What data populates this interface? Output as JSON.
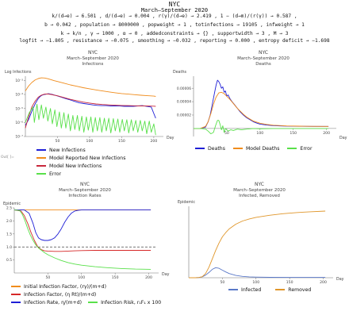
{
  "header": {
    "title": "NYC",
    "subtitle": "March–September 2020",
    "params": [
      "k/(d→e) → 6.501 ,  d/(d→e) → 0.004 ,  r(γ)/(d→e) → 2.419 ,  1 − (d→m)/(r(γ)) → 0.587 ,",
      "b → 0.042 ,  population → 8000000 ,  popweight → 1 ,  totinfections → 19105 ,  infweight → 1",
      "k → k/n ,  γ → 1000 ,  α → 0 ,  addedconstraints → {} ,  supportwidth → 3 ,  M → 3",
      "logfit → −1.805 ,  resistance → −0.075 ,  smoothing → −0.032 ,  reporting → 0.000 ,  entropy deficit → −1.698"
    ]
  },
  "out_label": "Out[ ]=",
  "chart_data": [
    {
      "type": "line",
      "title": "NYC",
      "subtitle": "March–September 2020",
      "subtitle2": "Infections",
      "ylabel": "Log Infections",
      "xlabel": "Day",
      "xlim": [
        0,
        210
      ],
      "ylim_log10": [
        -7,
        -2.7
      ],
      "xticks": [
        50,
        100,
        150,
        200
      ],
      "yticks": [
        {
          "label": "10⁻³",
          "v": -3
        },
        {
          "label": "10⁻⁴",
          "v": -4
        },
        {
          "label": "10⁻⁵",
          "v": -5
        },
        {
          "label": "10⁻⁶",
          "v": -6
        },
        {
          "label": "10⁻⁷",
          "v": -7
        }
      ],
      "series": [
        {
          "name": "New Infections",
          "color": "#1f1fd6",
          "x": [
            0,
            5,
            10,
            13,
            16,
            20,
            23,
            26,
            30,
            36,
            42,
            49,
            56,
            63,
            70,
            77,
            84,
            91,
            98,
            105,
            112,
            119,
            126,
            133,
            140,
            147,
            154,
            161,
            168,
            175,
            182,
            189,
            196,
            203
          ],
          "y": [
            -6.2,
            -5.8,
            -5.2,
            -4.9,
            -4.6,
            -4.3,
            -4.15,
            -4.05,
            -4.0,
            -3.95,
            -4.0,
            -4.1,
            -4.2,
            -4.3,
            -4.4,
            -4.5,
            -4.6,
            -4.65,
            -4.7,
            -4.75,
            -4.78,
            -4.8,
            -4.8,
            -4.82,
            -4.82,
            -4.83,
            -4.85,
            -4.85,
            -4.85,
            -4.82,
            -4.8,
            -4.85,
            -4.9,
            -5.7
          ]
        },
        {
          "name": "Model Reported New Infections",
          "color": "#f08c1c",
          "x": [
            0,
            5,
            10,
            15,
            20,
            25,
            30,
            35,
            40,
            45,
            50,
            60,
            70,
            80,
            90,
            100,
            110,
            120,
            130,
            140,
            150,
            160,
            170,
            180,
            190,
            200,
            203
          ],
          "y": [
            -3.75,
            -3.4,
            -3.15,
            -2.98,
            -2.87,
            -2.82,
            -2.83,
            -2.88,
            -2.95,
            -3.02,
            -3.08,
            -3.2,
            -3.32,
            -3.42,
            -3.52,
            -3.6,
            -3.68,
            -3.75,
            -3.82,
            -3.88,
            -3.94,
            -3.98,
            -4.02,
            -4.06,
            -4.09,
            -4.12,
            -4.14
          ]
        },
        {
          "name": "Model New Infections",
          "color": "#c8283c",
          "x": [
            0,
            5,
            10,
            15,
            20,
            25,
            30,
            35,
            40,
            45,
            50,
            60,
            70,
            80,
            90,
            100,
            110,
            120,
            130,
            140,
            150,
            160,
            170,
            180,
            190,
            200,
            203
          ],
          "y": [
            -6.4,
            -5.6,
            -4.9,
            -4.5,
            -4.2,
            -4.05,
            -3.98,
            -3.97,
            -4.0,
            -4.05,
            -4.1,
            -4.22,
            -4.35,
            -4.45,
            -4.55,
            -4.62,
            -4.68,
            -4.72,
            -4.75,
            -4.77,
            -4.79,
            -4.8,
            -4.81,
            -4.82,
            -4.83,
            -4.84,
            -4.85
          ]
        },
        {
          "name": "Error",
          "color": "#59e04a",
          "x": [
            0,
            6,
            12,
            14,
            18,
            21,
            25,
            28,
            32,
            35,
            39,
            42,
            46,
            49,
            53,
            56,
            60,
            63,
            67,
            70,
            74,
            77,
            81,
            84,
            88,
            91,
            95,
            98,
            102,
            105,
            109,
            112,
            116,
            119,
            123,
            126,
            130,
            133,
            137,
            140,
            144,
            147,
            151,
            154,
            158,
            161,
            165,
            168,
            172,
            175,
            179,
            182,
            186,
            189,
            193,
            196,
            200,
            203
          ],
          "y": [
            -6.0,
            -5.3,
            -4.9,
            -6.0,
            -4.7,
            -5.8,
            -4.75,
            -5.7,
            -4.9,
            -5.9,
            -5.0,
            -6.1,
            -5.1,
            -6.3,
            -5.25,
            -6.4,
            -5.3,
            -6.4,
            -5.4,
            -6.6,
            -5.5,
            -6.5,
            -5.5,
            -6.6,
            -5.55,
            -6.7,
            -5.6,
            -6.55,
            -5.6,
            -6.7,
            -5.65,
            -6.6,
            -5.65,
            -6.7,
            -5.7,
            -6.6,
            -5.7,
            -6.75,
            -5.72,
            -6.6,
            -5.75,
            -6.7,
            -5.78,
            -6.6,
            -5.8,
            -6.75,
            -5.8,
            -6.6,
            -5.85,
            -6.7,
            -5.85,
            -6.6,
            -5.9,
            -6.8,
            -5.9,
            -6.7,
            -6.1,
            -6.9
          ]
        }
      ]
    },
    {
      "type": "line",
      "title": "NYC",
      "subtitle": "March–September 2020",
      "subtitle2": "Deaths",
      "ylabel": "Deaths",
      "xlabel": "Day",
      "xlim": [
        0,
        210
      ],
      "ylim": [
        -1.2e-05,
        7.8e-05
      ],
      "xticks": [
        50,
        100,
        150,
        200
      ],
      "yticks": [
        {
          "label": "0.00006",
          "v": 6e-05
        },
        {
          "label": "0.00004",
          "v": 4e-05
        },
        {
          "label": "0.00002",
          "v": 2e-05
        }
      ],
      "series": [
        {
          "name": "Deaths",
          "color": "#1f1fd6",
          "x": [
            0,
            10,
            18,
            22,
            25,
            28,
            30,
            32,
            34,
            36,
            38,
            40,
            42,
            44,
            46,
            48,
            50,
            52,
            55,
            58,
            62,
            66,
            70,
            75,
            80,
            85,
            90,
            95,
            100,
            110,
            120,
            130,
            140,
            150,
            160,
            180,
            203
          ],
          "y": [
            0.0,
            0.0,
            2e-06,
            1e-05,
            2e-05,
            3.5e-05,
            4.5e-05,
            5.5e-05,
            6.5e-05,
            7.2e-05,
            7e-05,
            6.6e-05,
            6e-05,
            6.2e-05,
            5.4e-05,
            5.6e-05,
            4.8e-05,
            5e-05,
            4.4e-05,
            4e-05,
            3.5e-05,
            3e-05,
            2.5e-05,
            2e-05,
            1.6e-05,
            1.3e-05,
            1e-05,
            8e-06,
            6.5e-06,
            5e-06,
            4.2e-06,
            3.8e-06,
            3.5e-06,
            3.3e-06,
            3.2e-06,
            3e-06,
            3e-06
          ]
        },
        {
          "name": "Model Deaths",
          "color": "#f08c1c",
          "x": [
            0,
            10,
            18,
            22,
            26,
            30,
            34,
            38,
            42,
            46,
            50,
            55,
            60,
            65,
            70,
            75,
            80,
            90,
            100,
            110,
            120,
            140,
            160,
            180,
            203
          ],
          "y": [
            0.0,
            0.0,
            3e-06,
            1e-05,
            2.2e-05,
            3.6e-05,
            4.7e-05,
            5.3e-05,
            5.4e-05,
            5.2e-05,
            4.8e-05,
            4.3e-05,
            3.7e-05,
            3.1e-05,
            2.6e-05,
            2.1e-05,
            1.7e-05,
            1.1e-05,
            7.8e-06,
            6e-06,
            4.8e-06,
            3.8e-06,
            3.4e-06,
            3.1e-06,
            3e-06
          ]
        },
        {
          "name": "Error",
          "color": "#59e04a",
          "x": [
            0,
            10,
            18,
            22,
            26,
            30,
            33,
            36,
            38,
            40,
            42,
            44,
            46,
            48,
            52,
            56,
            60,
            66,
            72,
            80,
            90,
            100,
            120,
            150,
            180,
            203
          ],
          "y": [
            0.0,
            0.0,
            -1e-06,
            -4e-06,
            -8e-06,
            -6e-06,
            4e-06,
            1.2e-05,
            1.2e-05,
            6e-06,
            -2e-06,
            4e-06,
            -6e-06,
            0.0,
            -4e-06,
            -2e-06,
            -3e-06,
            -1e-06,
            -2e-06,
            -1e-06,
            0.0,
            -5e-07,
            0.0,
            0.0,
            0.0,
            0.0
          ]
        }
      ]
    },
    {
      "type": "line",
      "title": "NYC",
      "subtitle": "March–September 2020",
      "subtitle2": "Infection Rates",
      "ylabel": "Epidemic",
      "xlabel": "Day",
      "xlim": [
        0,
        210
      ],
      "ylim": [
        0,
        2.5
      ],
      "xticks": [
        50,
        100,
        150,
        200
      ],
      "yticks": [
        {
          "label": "2.5",
          "v": 2.5
        },
        {
          "label": "2.0",
          "v": 2.0
        },
        {
          "label": "1.5",
          "v": 1.5
        },
        {
          "label": "1.0",
          "v": 1.0
        },
        {
          "label": "0.5",
          "v": 0.5
        }
      ],
      "reference_line": 1.0,
      "series": [
        {
          "name": "Initial Infection Factor, (rγ)/(m+d)",
          "color": "#f08c1c",
          "x": [
            0,
            203
          ],
          "y": [
            2.42,
            2.42
          ]
        },
        {
          "name": "Infection Factor, (η Rt)/(m+d)",
          "color": "#d62828",
          "x": [
            0,
            10,
            15,
            20,
            25,
            30,
            35,
            40,
            45,
            50,
            60,
            70,
            80,
            90,
            100,
            120,
            140,
            160,
            180,
            203
          ],
          "y": [
            2.42,
            2.38,
            2.2,
            1.9,
            1.55,
            1.25,
            1.0,
            0.9,
            0.85,
            0.84,
            0.83,
            0.83,
            0.84,
            0.85,
            0.86,
            0.87,
            0.87,
            0.87,
            0.87,
            0.87
          ]
        },
        {
          "name": "Infection Rate, η/(m+d)",
          "color": "#1f1fd6",
          "x": [
            0,
            15,
            22,
            28,
            32,
            36,
            40,
            45,
            50,
            55,
            60,
            65,
            70,
            75,
            80,
            85,
            90,
            95,
            100,
            110,
            120,
            140,
            160,
            180,
            203
          ],
          "y": [
            2.42,
            2.42,
            2.3,
            1.9,
            1.55,
            1.35,
            1.28,
            1.25,
            1.25,
            1.28,
            1.35,
            1.5,
            1.7,
            1.95,
            2.15,
            2.3,
            2.38,
            2.41,
            2.42,
            2.42,
            2.42,
            2.42,
            2.42,
            2.42,
            2.42
          ]
        },
        {
          "name": "Infection Risk, r₁F₁ x 100",
          "color": "#59e04a",
          "x": [
            0,
            8,
            12,
            16,
            20,
            24,
            28,
            32,
            36,
            40,
            45,
            50,
            60,
            70,
            80,
            90,
            100,
            120,
            140,
            160,
            180,
            203
          ],
          "y": [
            2.42,
            2.4,
            2.25,
            2.0,
            1.7,
            1.45,
            1.25,
            1.08,
            0.96,
            0.88,
            0.78,
            0.7,
            0.58,
            0.48,
            0.4,
            0.34,
            0.3,
            0.24,
            0.2,
            0.17,
            0.15,
            0.14
          ]
        }
      ]
    },
    {
      "type": "line",
      "title": "NYC",
      "subtitle": "March–September 2020",
      "subtitle2": "Infected, Removed",
      "ylabel": "Epidemic",
      "xlabel": "Day",
      "xlim": [
        0,
        210
      ],
      "ylim": [
        0,
        0.68
      ],
      "xticks": [
        50,
        100,
        150,
        200
      ],
      "yticks": [],
      "series": [
        {
          "name": "Infected",
          "color": "#5a78c8",
          "x": [
            0,
            10,
            15,
            20,
            25,
            30,
            35,
            40,
            45,
            50,
            55,
            60,
            70,
            80,
            90,
            100,
            120,
            150,
            180,
            203
          ],
          "y": [
            0.0,
            0.0,
            0.002,
            0.008,
            0.025,
            0.05,
            0.08,
            0.096,
            0.09,
            0.072,
            0.055,
            0.04,
            0.022,
            0.013,
            0.008,
            0.006,
            0.004,
            0.003,
            0.003,
            0.003
          ]
        },
        {
          "name": "Removed",
          "color": "#e0962a",
          "x": [
            0,
            10,
            15,
            20,
            25,
            30,
            35,
            40,
            45,
            50,
            55,
            60,
            70,
            80,
            90,
            100,
            120,
            140,
            160,
            180,
            203
          ],
          "y": [
            0.0,
            0.0,
            0.002,
            0.01,
            0.04,
            0.1,
            0.18,
            0.26,
            0.33,
            0.39,
            0.43,
            0.465,
            0.51,
            0.54,
            0.56,
            0.575,
            0.595,
            0.61,
            0.62,
            0.628,
            0.635
          ]
        }
      ]
    }
  ]
}
